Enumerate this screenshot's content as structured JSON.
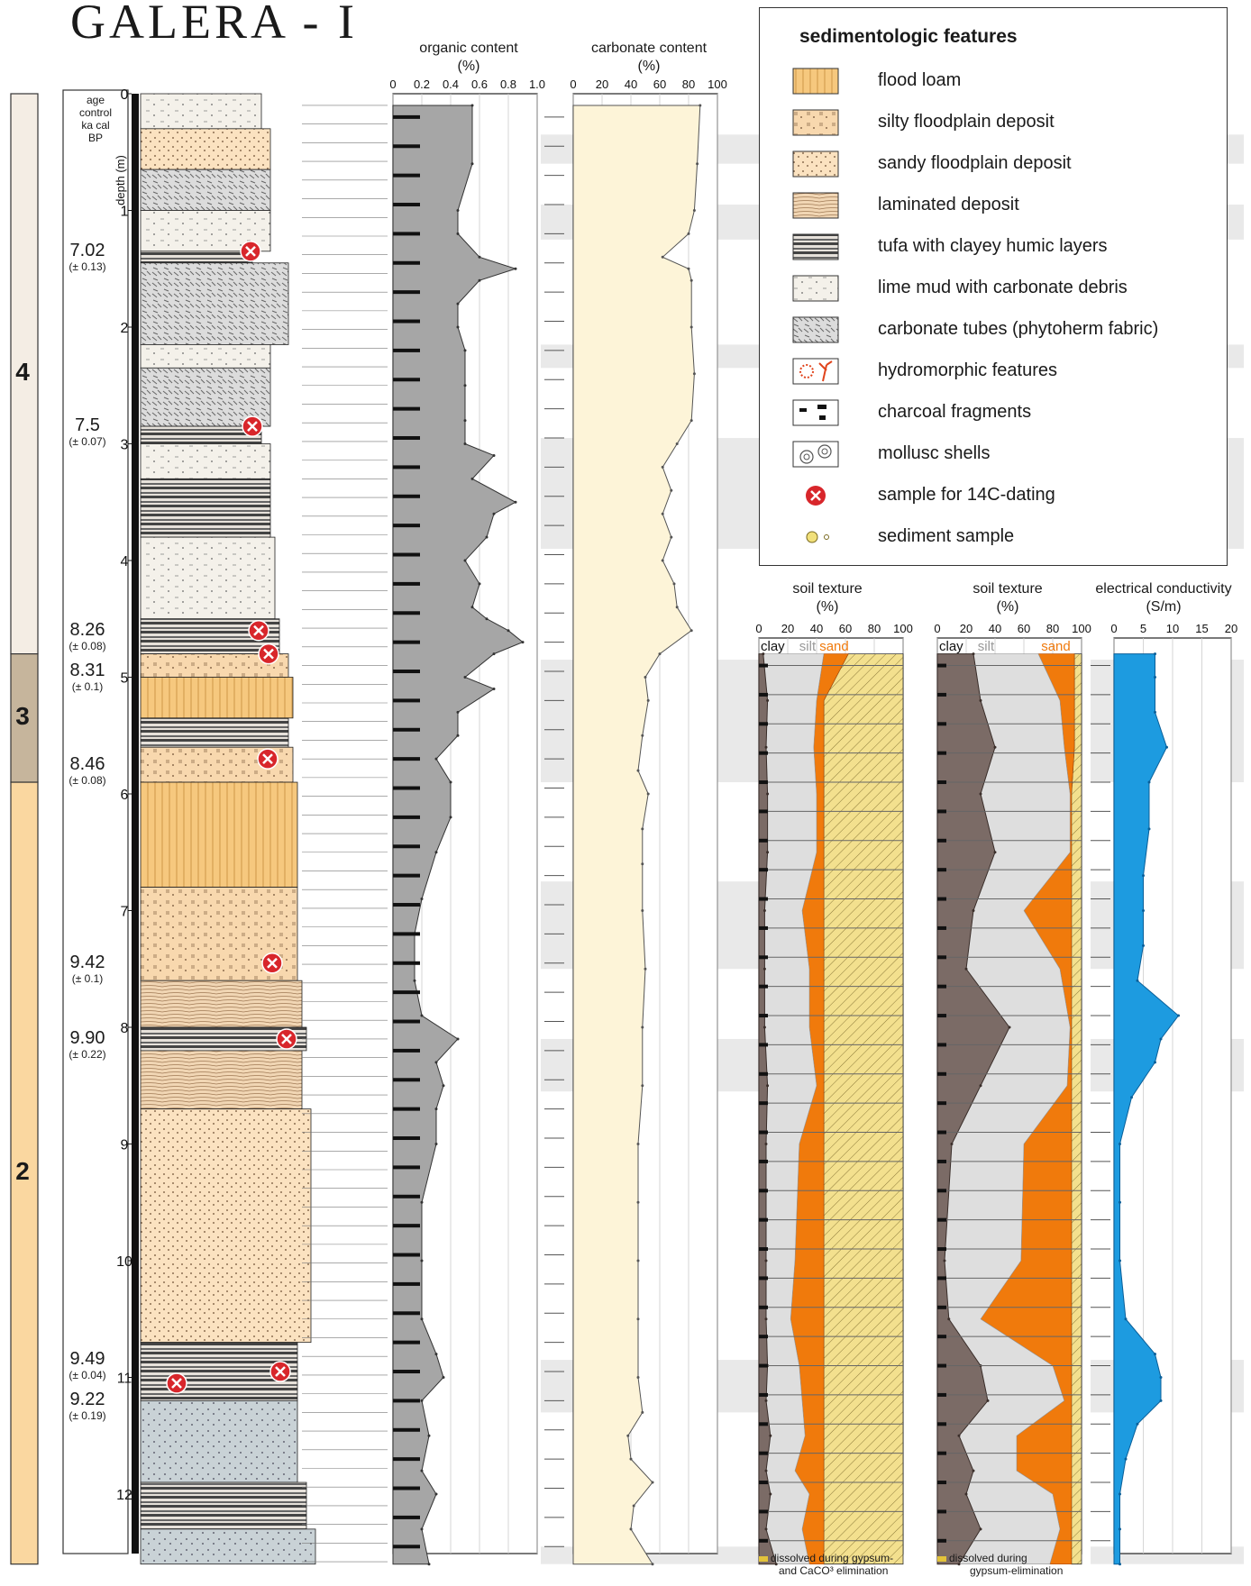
{
  "title": "GALERA - I",
  "age_header": [
    "age",
    "control",
    "ka cal",
    "BP"
  ],
  "depth_axis_label": "depth (m)",
  "depth_ticks": [
    0,
    1,
    2,
    3,
    4,
    5,
    6,
    7,
    8,
    9,
    10,
    11,
    12
  ],
  "zones": [
    {
      "label": "4",
      "top_m": 0,
      "bottom_m": 4.8,
      "color": "#f4ede4"
    },
    {
      "label": "3",
      "top_m": 4.8,
      "bottom_m": 5.9,
      "color": "#c6b59c"
    },
    {
      "label": "2",
      "top_m": 5.9,
      "bottom_m": 12.6,
      "color": "#fad7a0"
    }
  ],
  "ages": [
    {
      "value": "7.02",
      "error": "(± 0.13)",
      "depth_m": 1.35
    },
    {
      "value": "7.5",
      "error": "(± 0.07)",
      "depth_m": 2.85
    },
    {
      "value": "8.26",
      "error": "(± 0.08)",
      "depth_m": 4.6
    },
    {
      "value": "8.31",
      "error": "(± 0.1)",
      "depth_m": 4.95
    },
    {
      "value": "8.46",
      "error": "(± 0.08)",
      "depth_m": 5.75
    },
    {
      "value": "9.42",
      "error": "(± 0.1)",
      "depth_m": 7.45
    },
    {
      "value": "9.90",
      "error": "(± 0.22)",
      "depth_m": 8.1
    },
    {
      "value": "9.49",
      "error": "(± 0.04)",
      "depth_m": 10.85
    },
    {
      "value": "9.22",
      "error": "(± 0.19)",
      "depth_m": 11.2
    }
  ],
  "legend": {
    "title": "sedimentologic features",
    "items": [
      {
        "label": "flood loam",
        "icon": "flood-loam-swatch"
      },
      {
        "label": "silty floodplain deposit",
        "icon": "silty-floodplain-swatch"
      },
      {
        "label": "sandy floodplain deposit",
        "icon": "sandy-floodplain-swatch"
      },
      {
        "label": "laminated deposit",
        "icon": "laminated-swatch"
      },
      {
        "label": "tufa with clayey humic layers",
        "icon": "tufa-swatch"
      },
      {
        "label": "lime mud with carbonate debris",
        "icon": "lime-mud-swatch"
      },
      {
        "label": "carbonate tubes (phytoherm fabric)",
        "icon": "carbonate-tubes-swatch"
      },
      {
        "label": "hydromorphic features",
        "icon": "hydromorphic-swatch"
      },
      {
        "label": "charcoal fragments",
        "icon": "charcoal-swatch"
      },
      {
        "label": "mollusc shells",
        "icon": "mollusc-swatch"
      },
      {
        "label": "sample for 14C-dating",
        "icon": "c14-sample-icon"
      },
      {
        "label": "sediment sample",
        "icon": "sediment-sample-icon"
      }
    ]
  },
  "colors": {
    "flood_loam": "#f6c87e",
    "silty": "#f8d8ae",
    "sandy": "#fbe2c0",
    "laminated": "#f1d6b4",
    "tufa": "#5b5b5b",
    "lime_mud": "#f4f1ea",
    "tubes": "#dcdcdc",
    "hydro": "#e0441c",
    "organic": "#a6a6a6",
    "carbonate": "#fdf4d8",
    "clay": "#7b6b66",
    "silt": "#dedede",
    "sand": "#f07a0c",
    "dissolved": "#f3e08e",
    "ec": "#1d9be0"
  },
  "chart_data": [
    {
      "type": "area",
      "title": "organic content (%)",
      "xlim": [
        0,
        1.0
      ],
      "x_ticks": [
        "0",
        "0.2",
        "0.4",
        "0.6",
        "0.8",
        "1.0"
      ],
      "depth": [
        0.1,
        0.6,
        1.0,
        1.2,
        1.4,
        1.5,
        1.6,
        1.8,
        2.0,
        2.2,
        2.5,
        2.8,
        3.0,
        3.1,
        3.3,
        3.5,
        3.6,
        3.8,
        4.0,
        4.2,
        4.4,
        4.5,
        4.6,
        4.7,
        4.8,
        5.0,
        5.1,
        5.3,
        5.5,
        5.7,
        5.9,
        6.2,
        6.5,
        6.9,
        7.2,
        7.6,
        7.9,
        8.1,
        8.3,
        8.5,
        8.7,
        9.0,
        9.5,
        10.0,
        10.5,
        10.8,
        11.0,
        11.2,
        11.5,
        11.8,
        12.0,
        12.3,
        12.6
      ],
      "values": [
        0.55,
        0.55,
        0.45,
        0.45,
        0.6,
        0.85,
        0.6,
        0.45,
        0.45,
        0.5,
        0.5,
        0.5,
        0.5,
        0.7,
        0.55,
        0.85,
        0.7,
        0.65,
        0.5,
        0.6,
        0.55,
        0.65,
        0.8,
        0.9,
        0.7,
        0.5,
        0.7,
        0.45,
        0.45,
        0.3,
        0.4,
        0.4,
        0.3,
        0.2,
        0.15,
        0.15,
        0.2,
        0.45,
        0.3,
        0.35,
        0.3,
        0.3,
        0.2,
        0.2,
        0.2,
        0.3,
        0.35,
        0.2,
        0.25,
        0.2,
        0.3,
        0.2,
        0.25
      ]
    },
    {
      "type": "area",
      "title": "carbonate content (%)",
      "xlim": [
        0,
        100
      ],
      "x_ticks": [
        "0",
        "20",
        "40",
        "60",
        "80",
        "100"
      ],
      "depth": [
        0.1,
        0.6,
        1.0,
        1.2,
        1.4,
        1.5,
        1.6,
        2.0,
        2.4,
        2.8,
        3.0,
        3.2,
        3.4,
        3.6,
        3.8,
        4.0,
        4.2,
        4.4,
        4.6,
        4.8,
        5.0,
        5.2,
        5.5,
        5.8,
        6.0,
        6.3,
        6.6,
        7.0,
        7.5,
        8.0,
        8.5,
        9.0,
        9.5,
        10.0,
        10.5,
        11.0,
        11.3,
        11.5,
        11.7,
        11.9,
        12.1,
        12.3,
        12.6
      ],
      "values": [
        88,
        86,
        84,
        80,
        62,
        80,
        82,
        82,
        84,
        82,
        72,
        62,
        68,
        62,
        68,
        62,
        70,
        72,
        82,
        60,
        50,
        52,
        48,
        45,
        52,
        48,
        48,
        48,
        50,
        48,
        48,
        45,
        45,
        45,
        45,
        45,
        48,
        38,
        40,
        55,
        42,
        40,
        55
      ]
    },
    {
      "type": "area",
      "title": "soil texture (%)",
      "xlim": [
        0,
        100
      ],
      "x_ticks": [
        "0",
        "20",
        "40",
        "60",
        "80",
        "100"
      ],
      "series": [
        {
          "name": "clay",
          "depth": [
            4.8,
            5.2,
            5.6,
            6.0,
            6.5,
            7.0,
            7.5,
            8.0,
            8.5,
            9.0,
            10.0,
            10.5,
            10.9,
            11.2,
            11.5,
            11.8,
            12.0,
            12.3,
            12.6
          ],
          "values": [
            3,
            6,
            5,
            6,
            6,
            4,
            4,
            4,
            6,
            5,
            5,
            5,
            6,
            5,
            8,
            5,
            8,
            5,
            12
          ]
        },
        {
          "name": "silt",
          "depth": [
            4.8,
            5.2,
            5.6,
            6.0,
            6.5,
            7.0,
            7.5,
            8.0,
            8.5,
            9.0,
            10.0,
            10.5,
            10.9,
            11.2,
            11.5,
            11.8,
            12.0,
            12.3,
            12.6
          ],
          "values": [
            45,
            40,
            38,
            40,
            40,
            30,
            35,
            35,
            40,
            28,
            25,
            22,
            28,
            30,
            32,
            25,
            35,
            30,
            35
          ]
        },
        {
          "name": "sand",
          "depth": [
            4.8,
            5.2,
            5.6,
            6.0,
            6.5,
            7.0,
            7.5,
            8.0,
            8.5,
            9.0,
            10.0,
            10.5,
            10.9,
            11.2,
            11.5,
            11.8,
            12.0,
            12.3,
            12.6
          ],
          "values": [
            62,
            45,
            45,
            45,
            45,
            45,
            45,
            45,
            45,
            45,
            45,
            45,
            45,
            45,
            45,
            45,
            45,
            45,
            45
          ]
        }
      ]
    },
    {
      "type": "area",
      "title": "soil texture (%)",
      "xlim": [
        0,
        100
      ],
      "x_ticks": [
        "0",
        "20",
        "40",
        "60",
        "80",
        "100"
      ],
      "series": [
        {
          "name": "clay",
          "depth": [
            4.8,
            5.2,
            5.6,
            6.0,
            6.5,
            7.0,
            7.5,
            8.0,
            8.5,
            9.0,
            10.0,
            10.5,
            10.9,
            11.2,
            11.5,
            11.8,
            12.0,
            12.3,
            12.6
          ],
          "values": [
            25,
            30,
            40,
            30,
            40,
            25,
            20,
            50,
            30,
            10,
            5,
            8,
            30,
            35,
            15,
            25,
            20,
            30,
            15
          ]
        },
        {
          "name": "silt",
          "depth": [
            4.8,
            5.2,
            5.6,
            6.0,
            6.5,
            7.0,
            7.5,
            8.0,
            8.5,
            9.0,
            10.0,
            10.5,
            10.9,
            11.2,
            11.5,
            11.8,
            12.0,
            12.3,
            12.6
          ],
          "values": [
            70,
            85,
            88,
            92,
            92,
            60,
            85,
            92,
            90,
            60,
            58,
            30,
            80,
            88,
            55,
            55,
            80,
            85,
            78
          ]
        },
        {
          "name": "sand",
          "depth": [
            4.8,
            5.2,
            5.6,
            6.0,
            6.5,
            7.0,
            7.5,
            8.0,
            8.5,
            9.0,
            10.0,
            10.5,
            10.9,
            11.2,
            11.5,
            11.8,
            12.0,
            12.3,
            12.6
          ],
          "values": [
            95,
            95,
            95,
            93,
            93,
            93,
            93,
            93,
            93,
            93,
            93,
            93,
            93,
            93,
            93,
            93,
            93,
            93,
            93
          ]
        }
      ]
    },
    {
      "type": "area",
      "title": "electrical conductivity (S/m)",
      "xlim": [
        0,
        20
      ],
      "x_ticks": [
        "0",
        "5",
        "10",
        "15",
        "20"
      ],
      "depth": [
        4.8,
        5.0,
        5.3,
        5.6,
        5.9,
        6.3,
        6.7,
        7.0,
        7.3,
        7.6,
        7.9,
        8.1,
        8.3,
        8.6,
        9.0,
        9.5,
        10.0,
        10.5,
        10.8,
        11.0,
        11.2,
        11.4,
        11.7,
        12.0,
        12.3,
        12.6
      ],
      "values": [
        7,
        7,
        7,
        9,
        6,
        6,
        5,
        5,
        5,
        4,
        11,
        8,
        7,
        3,
        1,
        1,
        1,
        2,
        7,
        8,
        8,
        4,
        2,
        1,
        1,
        1
      ]
    }
  ],
  "chart_labels": {
    "clay": "clay",
    "silt": "silt",
    "sand": "sand",
    "dissolved_1": [
      "dissolved during gypsum-",
      "and CaCO³ elimination"
    ],
    "dissolved_2": [
      "dissolved during",
      "gypsum-elimination"
    ]
  }
}
